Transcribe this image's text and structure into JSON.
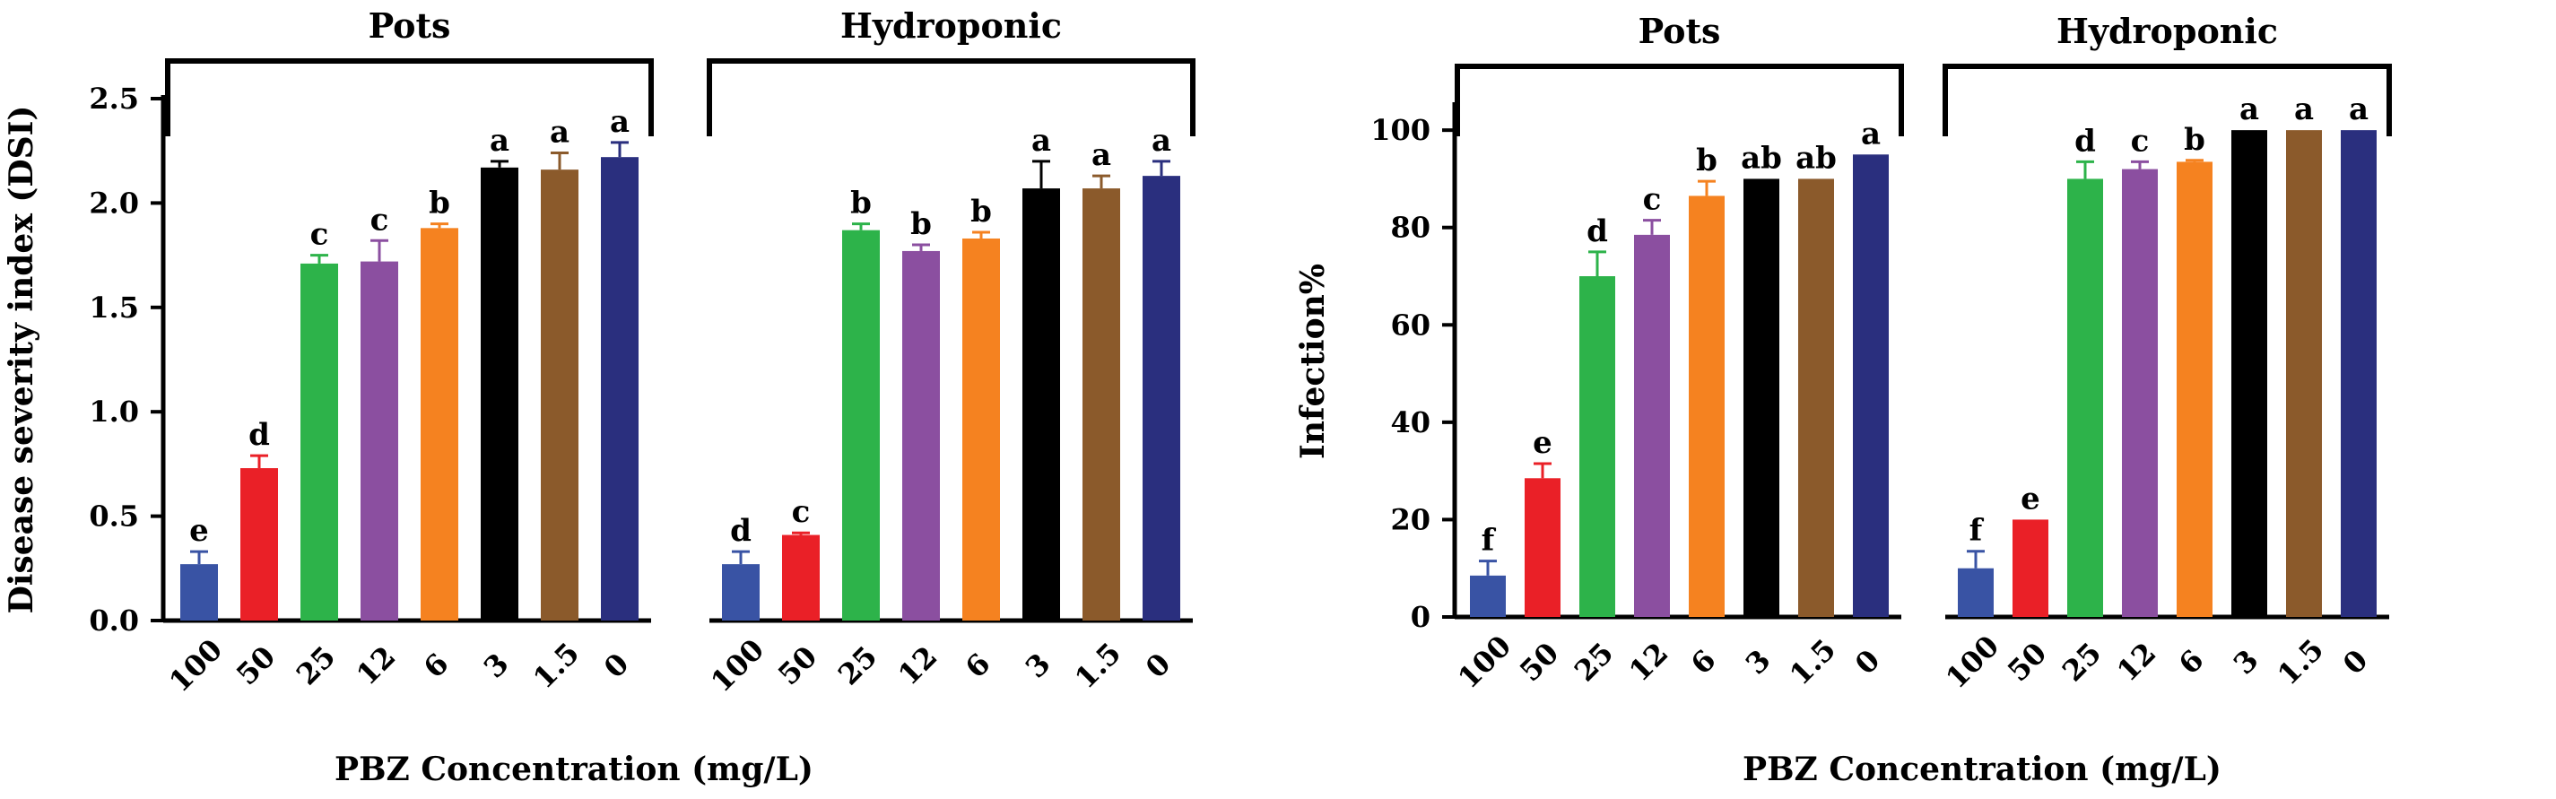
{
  "chart_data": [
    {
      "type": "bar",
      "ylabel": "Disease severity index (DSI)",
      "xlabel": "PBZ Concentration (mg/L)",
      "ylim": [
        0,
        2.5
      ],
      "yticks": [
        0.0,
        0.5,
        1.0,
        1.5,
        2.0,
        2.5
      ],
      "ytick_labels": [
        "0.0",
        "0.5",
        "1.0",
        "1.5",
        "2.0",
        "2.5"
      ],
      "groups": [
        {
          "name": "Pots",
          "categories": [
            "100",
            "50",
            "25",
            "12",
            "6",
            "3",
            "1.5",
            "0"
          ],
          "values": [
            0.27,
            0.73,
            1.71,
            1.72,
            1.88,
            2.17,
            2.16,
            2.22
          ],
          "errors": [
            0.06,
            0.06,
            0.04,
            0.1,
            0.02,
            0.03,
            0.08,
            0.07
          ],
          "letters": [
            "e",
            "d",
            "c",
            "c",
            "b",
            "a",
            "a",
            "a"
          ]
        },
        {
          "name": "Hydroponic",
          "categories": [
            "100",
            "50",
            "25",
            "12",
            "6",
            "3",
            "1.5",
            "0"
          ],
          "values": [
            0.27,
            0.41,
            1.87,
            1.77,
            1.83,
            2.07,
            2.07,
            2.13
          ],
          "errors": [
            0.06,
            0.01,
            0.03,
            0.03,
            0.03,
            0.13,
            0.06,
            0.07
          ],
          "letters": [
            "d",
            "c",
            "b",
            "b",
            "b",
            "a",
            "a",
            "a"
          ]
        }
      ]
    },
    {
      "type": "bar",
      "ylabel": "Infection%",
      "xlabel": "PBZ Concentration (mg/L)",
      "ylim": [
        0,
        105
      ],
      "yticks": [
        0,
        20,
        40,
        60,
        80,
        100
      ],
      "ytick_labels": [
        "0",
        "20",
        "40",
        "60",
        "80",
        "100"
      ],
      "groups": [
        {
          "name": "Pots",
          "categories": [
            "100",
            "50",
            "25",
            "12",
            "6",
            "3",
            "1.5",
            "0"
          ],
          "values": [
            8.5,
            28.5,
            70,
            78.5,
            86.5,
            90,
            90,
            95
          ],
          "errors": [
            3,
            3,
            5,
            3,
            3,
            0,
            0,
            0
          ],
          "letters": [
            "f",
            "e",
            "d",
            "c",
            "b",
            "ab",
            "ab",
            "a"
          ]
        },
        {
          "name": "Hydroponic",
          "categories": [
            "100",
            "50",
            "25",
            "12",
            "6",
            "3",
            "1.5",
            "0"
          ],
          "values": [
            10,
            20,
            90,
            92,
            93.5,
            100,
            100,
            100
          ],
          "errors": [
            3.5,
            0,
            3.5,
            1.5,
            0.3,
            0,
            0,
            0
          ],
          "letters": [
            "f",
            "e",
            "d",
            "c",
            "b",
            "a",
            "a",
            "a"
          ]
        }
      ]
    }
  ],
  "bar_colors": [
    "#3953a4",
    "#ea2027",
    "#2db34a",
    "#8b4fa0",
    "#f58220",
    "#000000",
    "#8b5a2b",
    "#2a2f7e"
  ],
  "error_colors": [
    "#3953a4",
    "#ea2027",
    "#2db34a",
    "#8b4fa0",
    "#f58220",
    "#000000",
    "#8b5a2b",
    "#2a2f7e"
  ]
}
